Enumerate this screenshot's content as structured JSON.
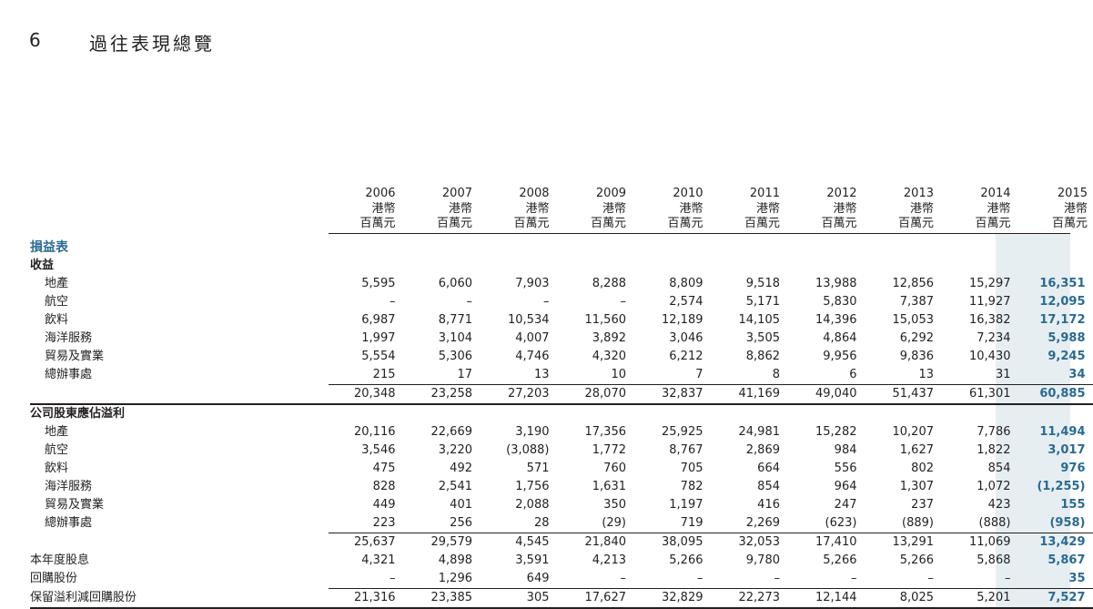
{
  "section": {
    "number": "6",
    "title": "過往表現總覽"
  },
  "headers": [
    {
      "year": "2006",
      "currency": "港幣",
      "unit": "百萬元"
    },
    {
      "year": "2007",
      "currency": "港幣",
      "unit": "百萬元"
    },
    {
      "year": "2008",
      "currency": "港幣",
      "unit": "百萬元"
    },
    {
      "year": "2009",
      "currency": "港幣",
      "unit": "百萬元"
    },
    {
      "year": "2010",
      "currency": "港幣",
      "unit": "百萬元"
    },
    {
      "year": "2011",
      "currency": "港幣",
      "unit": "百萬元"
    },
    {
      "year": "2012",
      "currency": "港幣",
      "unit": "百萬元"
    },
    {
      "year": "2013",
      "currency": "港幣",
      "unit": "百萬元"
    },
    {
      "year": "2014",
      "currency": "港幣",
      "unit": "百萬元"
    },
    {
      "year": "2015",
      "currency": "港幣",
      "unit": "百萬元"
    }
  ],
  "rows": [
    {
      "type": "title",
      "label": "損益表",
      "values": []
    },
    {
      "type": "subhead",
      "label": "收益",
      "values": []
    },
    {
      "type": "item",
      "label": "地產",
      "values": [
        "5,595",
        "6,060",
        "7,903",
        "8,288",
        "8,809",
        "9,518",
        "13,988",
        "12,856",
        "15,297",
        "16,351"
      ]
    },
    {
      "type": "item",
      "label": "航空",
      "values": [
        "–",
        "–",
        "–",
        "–",
        "2,574",
        "5,171",
        "5,830",
        "7,387",
        "11,927",
        "12,095"
      ]
    },
    {
      "type": "item",
      "label": "飲料",
      "values": [
        "6,987",
        "8,771",
        "10,534",
        "11,560",
        "12,189",
        "14,105",
        "14,396",
        "15,053",
        "16,382",
        "17,172"
      ]
    },
    {
      "type": "item",
      "label": "海洋服務",
      "values": [
        "1,997",
        "3,104",
        "4,007",
        "3,892",
        "3,046",
        "3,505",
        "4,864",
        "6,292",
        "7,234",
        "5,988"
      ]
    },
    {
      "type": "item",
      "label": "貿易及實業",
      "values": [
        "5,554",
        "5,306",
        "4,746",
        "4,320",
        "6,212",
        "8,862",
        "9,956",
        "9,836",
        "10,430",
        "9,245"
      ]
    },
    {
      "type": "item",
      "label": "總辦事處",
      "values": [
        "215",
        "17",
        "13",
        "10",
        "7",
        "8",
        "6",
        "13",
        "31",
        "34"
      ]
    },
    {
      "type": "total-strong",
      "label": "",
      "values": [
        "20,348",
        "23,258",
        "27,203",
        "28,070",
        "32,837",
        "41,169",
        "49,040",
        "51,437",
        "61,301",
        "60,885"
      ]
    },
    {
      "type": "subhead",
      "label": "公司股東應佔溢利",
      "values": []
    },
    {
      "type": "item",
      "label": "地產",
      "values": [
        "20,116",
        "22,669",
        "3,190",
        "17,356",
        "25,925",
        "24,981",
        "15,282",
        "10,207",
        "7,786",
        "11,494"
      ]
    },
    {
      "type": "item",
      "label": "航空",
      "values": [
        "3,546",
        "3,220",
        "(3,088)",
        "1,772",
        "8,767",
        "2,869",
        "984",
        "1,627",
        "1,822",
        "3,017"
      ]
    },
    {
      "type": "item",
      "label": "飲料",
      "values": [
        "475",
        "492",
        "571",
        "760",
        "705",
        "664",
        "556",
        "802",
        "854",
        "976"
      ]
    },
    {
      "type": "item",
      "label": "海洋服務",
      "values": [
        "828",
        "2,541",
        "1,756",
        "1,631",
        "782",
        "854",
        "964",
        "1,307",
        "1,072",
        "(1,255)"
      ]
    },
    {
      "type": "item",
      "label": "貿易及實業",
      "values": [
        "449",
        "401",
        "2,088",
        "350",
        "1,197",
        "416",
        "247",
        "237",
        "423",
        "155"
      ]
    },
    {
      "type": "item",
      "label": "總辦事處",
      "values": [
        "223",
        "256",
        "28",
        "(29)",
        "719",
        "2,269",
        "(623)",
        "(889)",
        "(888)",
        "(958)"
      ]
    },
    {
      "type": "total",
      "label": "",
      "values": [
        "25,637",
        "29,579",
        "4,545",
        "21,840",
        "38,095",
        "32,053",
        "17,410",
        "13,291",
        "11,069",
        "13,429"
      ]
    },
    {
      "type": "line",
      "label": "本年度股息",
      "values": [
        "4,321",
        "4,898",
        "3,591",
        "4,213",
        "5,266",
        "9,780",
        "5,266",
        "5,266",
        "5,868",
        "5,867"
      ]
    },
    {
      "type": "line",
      "label": "回購股份",
      "values": [
        "–",
        "1,296",
        "649",
        "–",
        "–",
        "–",
        "–",
        "–",
        "–",
        "35"
      ]
    },
    {
      "type": "final",
      "label": "保留溢利減回購股份",
      "values": [
        "21,316",
        "23,385",
        "305",
        "17,627",
        "32,829",
        "22,273",
        "12,144",
        "8,025",
        "5,201",
        "7,527"
      ]
    }
  ]
}
